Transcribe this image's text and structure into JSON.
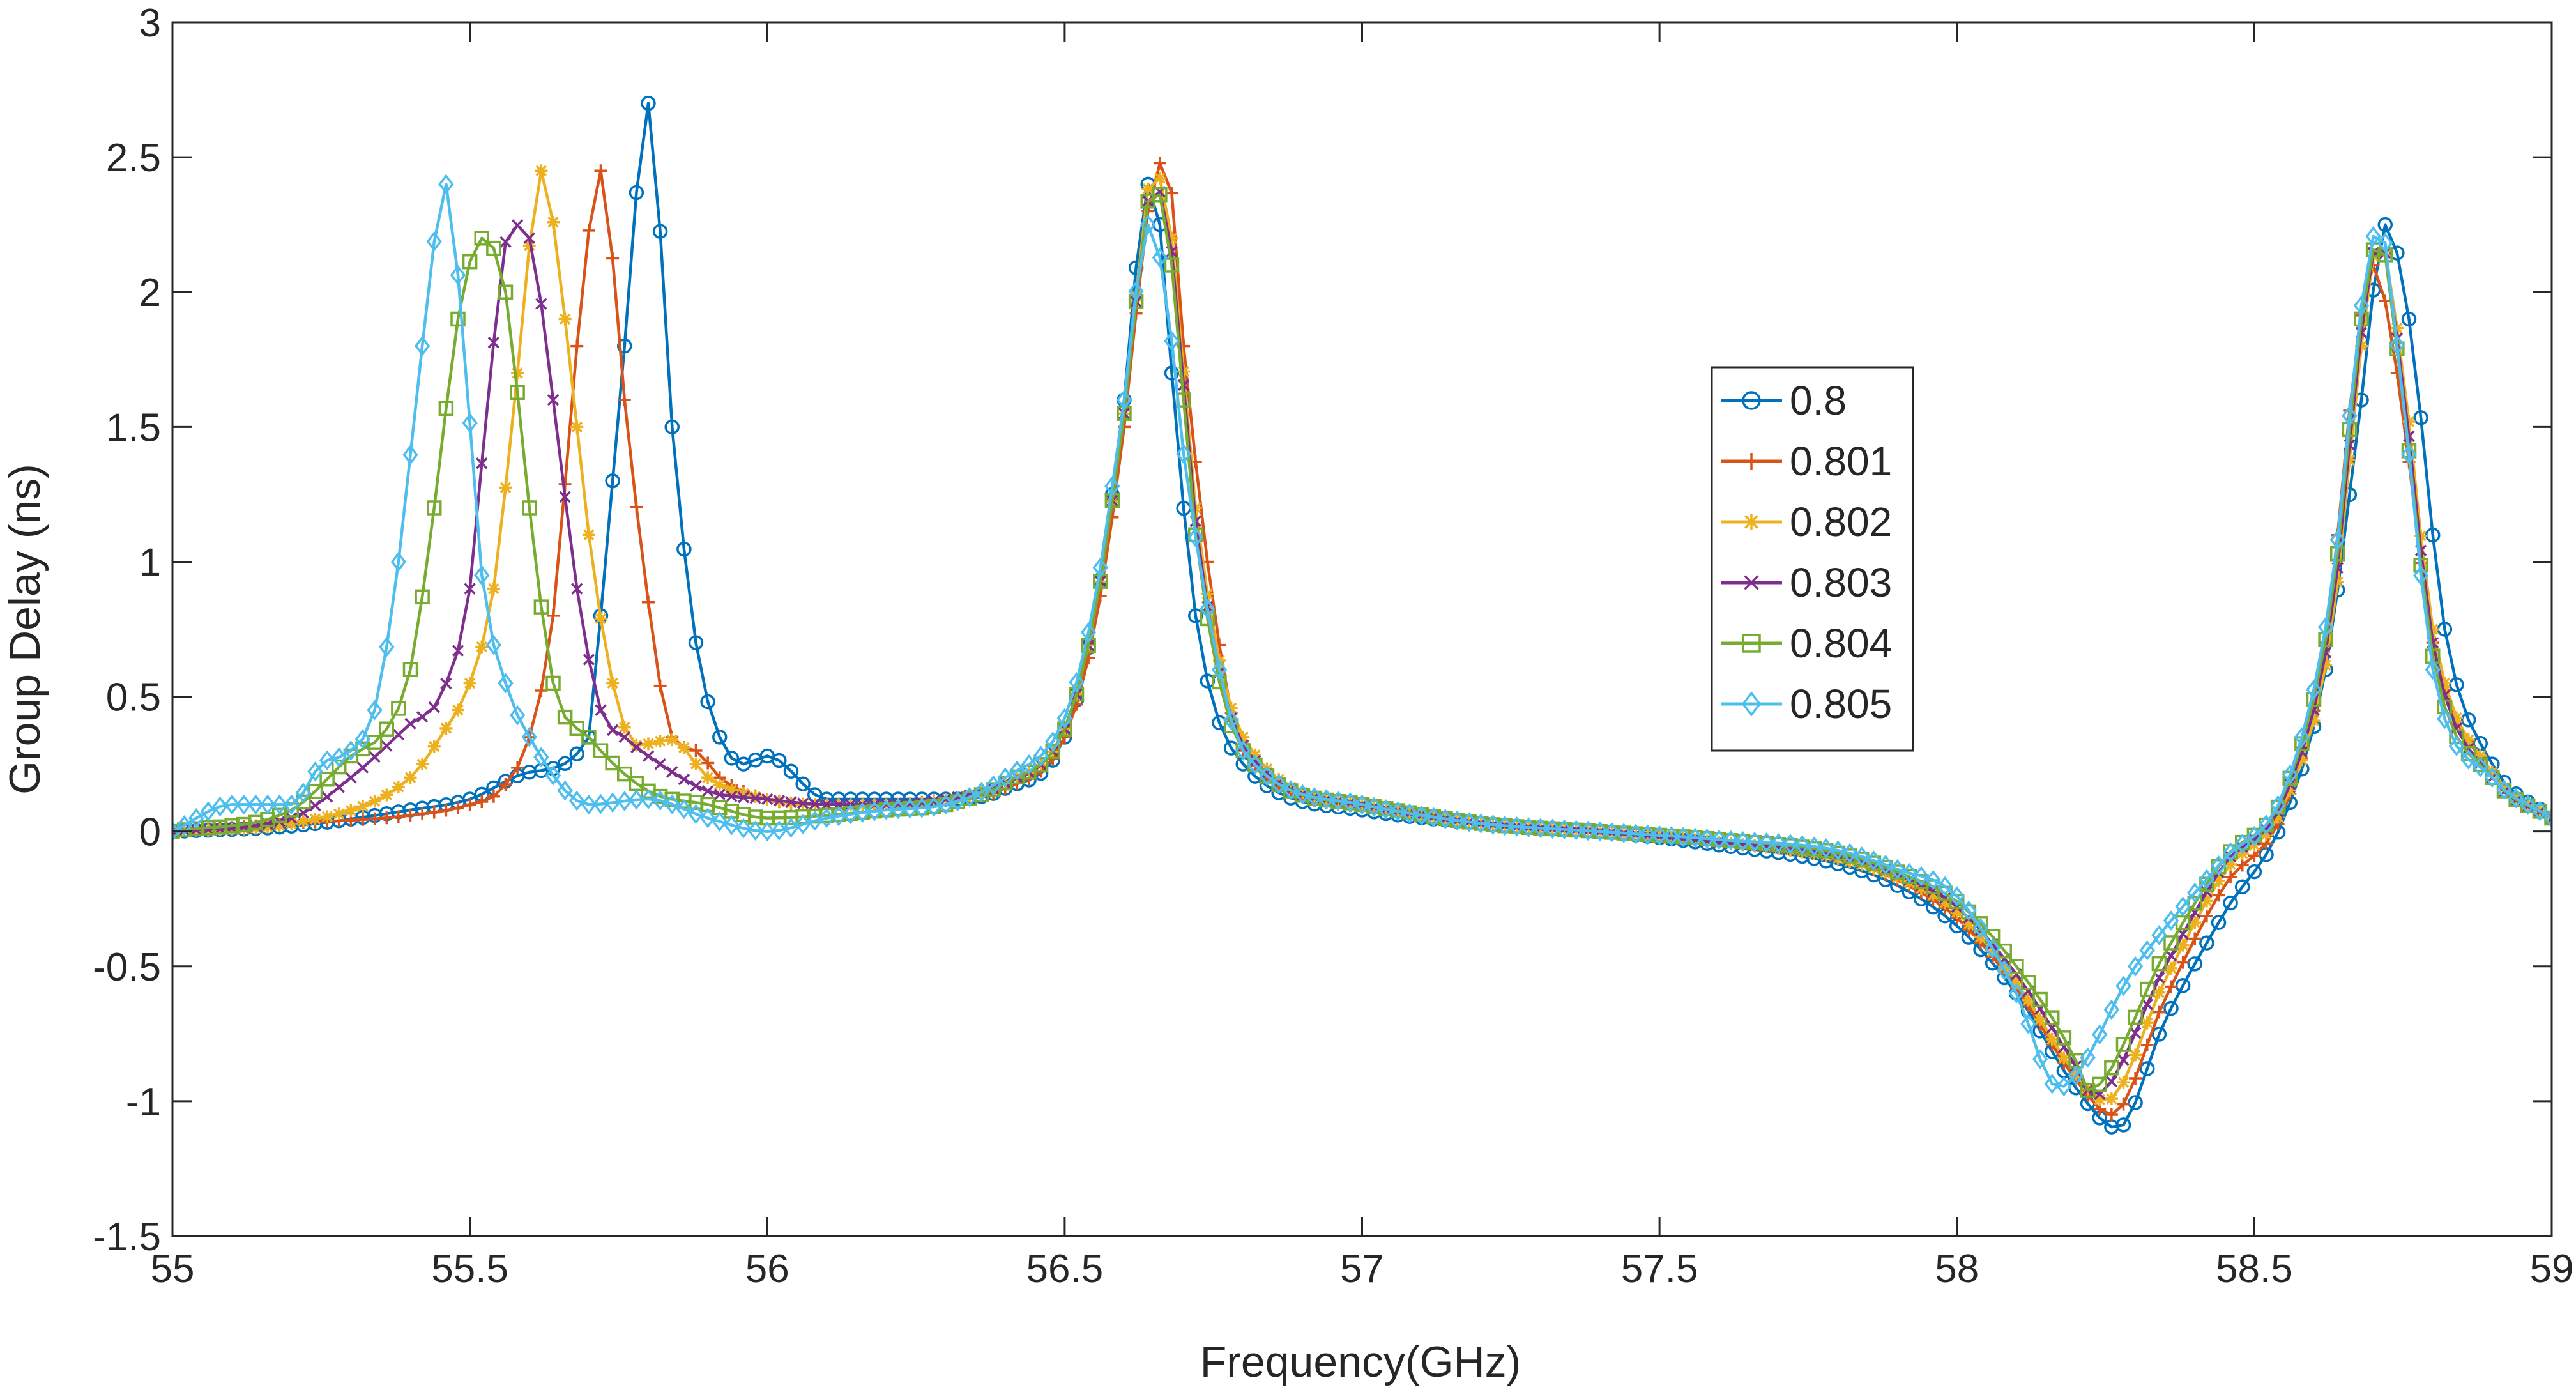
{
  "chart_data": {
    "type": "line",
    "title": "",
    "xlabel": "Frequency(GHz)",
    "ylabel": "Group Delay (ns)",
    "xlim": [
      55,
      59
    ],
    "ylim": [
      -1.5,
      3
    ],
    "xticks": [
      55,
      55.5,
      56,
      56.5,
      57,
      57.5,
      58,
      58.5,
      59
    ],
    "yticks": [
      -1.5,
      -1,
      -0.5,
      0,
      0.5,
      1,
      1.5,
      2,
      2.5,
      3
    ],
    "xtick_labels": [
      "55",
      "55.5",
      "56",
      "56.5",
      "57",
      "57.5",
      "58",
      "58.5",
      "59"
    ],
    "ytick_labels": [
      "-1.5",
      "-1",
      "-0.5",
      "0",
      "0.5",
      "1",
      "1.5",
      "2",
      "2.5",
      "3"
    ],
    "grid": false,
    "legend_position": "center-right",
    "series": [
      {
        "name": "0.8",
        "color": "#0072BD",
        "marker": "circle",
        "x": [
          55.0,
          55.2,
          55.4,
          55.5,
          55.6,
          55.7,
          55.72,
          55.76,
          55.8,
          55.84,
          55.88,
          55.92,
          55.96,
          56.0,
          56.1,
          56.2,
          56.3,
          56.4,
          56.5,
          56.55,
          56.6,
          56.64,
          56.66,
          56.68,
          56.72,
          56.8,
          57.0,
          57.2,
          57.4,
          57.6,
          57.8,
          57.9,
          58.0,
          58.1,
          58.2,
          58.27,
          58.35,
          58.45,
          58.55,
          58.62,
          58.68,
          58.72,
          58.76,
          58.82,
          58.9,
          59.0
        ],
        "y": [
          0.0,
          0.02,
          0.08,
          0.12,
          0.22,
          0.35,
          0.8,
          1.8,
          2.7,
          1.5,
          0.7,
          0.35,
          0.25,
          0.28,
          0.12,
          0.12,
          0.12,
          0.16,
          0.35,
          0.8,
          1.6,
          2.4,
          2.25,
          1.7,
          0.8,
          0.25,
          0.08,
          0.03,
          0.0,
          -0.05,
          -0.12,
          -0.2,
          -0.35,
          -0.6,
          -0.95,
          -1.1,
          -0.7,
          -0.3,
          0.05,
          0.6,
          1.6,
          2.25,
          1.9,
          0.75,
          0.25,
          0.05
        ]
      },
      {
        "name": "0.801",
        "color": "#D95319",
        "marker": "plus",
        "x": [
          55.0,
          55.2,
          55.4,
          55.5,
          55.55,
          55.6,
          55.64,
          55.68,
          55.72,
          55.76,
          55.8,
          55.84,
          55.88,
          55.92,
          56.0,
          56.1,
          56.2,
          56.3,
          56.4,
          56.5,
          56.55,
          56.6,
          56.64,
          56.67,
          56.7,
          56.74,
          56.8,
          57.0,
          57.2,
          57.4,
          57.6,
          57.8,
          57.9,
          58.0,
          58.1,
          58.2,
          58.26,
          58.35,
          58.45,
          58.55,
          58.62,
          58.67,
          58.7,
          58.74,
          58.8,
          58.9,
          59.0
        ],
        "y": [
          0.0,
          0.03,
          0.06,
          0.1,
          0.15,
          0.35,
          0.8,
          1.8,
          2.45,
          1.6,
          0.85,
          0.35,
          0.3,
          0.2,
          0.12,
          0.1,
          0.1,
          0.12,
          0.16,
          0.35,
          0.75,
          1.5,
          2.3,
          2.5,
          1.8,
          1.0,
          0.3,
          0.09,
          0.03,
          0.0,
          -0.04,
          -0.1,
          -0.18,
          -0.32,
          -0.58,
          -0.92,
          -1.05,
          -0.62,
          -0.2,
          0.08,
          0.7,
          1.75,
          2.1,
          1.7,
          0.7,
          0.22,
          0.05
        ]
      },
      {
        "name": "0.802",
        "color": "#EDB120",
        "marker": "asterisk",
        "x": [
          55.0,
          55.2,
          55.4,
          55.45,
          55.5,
          55.54,
          55.58,
          55.62,
          55.66,
          55.7,
          55.74,
          55.78,
          55.84,
          55.9,
          56.0,
          56.1,
          56.2,
          56.3,
          56.4,
          56.5,
          56.55,
          56.6,
          56.65,
          56.68,
          56.72,
          56.8,
          57.0,
          57.2,
          57.4,
          57.6,
          57.8,
          57.9,
          58.0,
          58.1,
          58.2,
          58.25,
          58.35,
          58.45,
          58.55,
          58.63,
          58.68,
          58.71,
          58.75,
          58.8,
          58.9,
          59.0
        ],
        "y": [
          0.0,
          0.03,
          0.2,
          0.35,
          0.55,
          0.9,
          1.7,
          2.45,
          1.9,
          1.1,
          0.55,
          0.32,
          0.34,
          0.2,
          0.12,
          0.1,
          0.1,
          0.12,
          0.18,
          0.38,
          0.8,
          1.55,
          2.45,
          2.2,
          1.2,
          0.35,
          0.1,
          0.03,
          0.0,
          -0.04,
          -0.1,
          -0.17,
          -0.3,
          -0.56,
          -0.9,
          -1.0,
          -0.55,
          -0.15,
          0.1,
          0.75,
          1.8,
          2.2,
          1.7,
          0.75,
          0.22,
          0.05
        ]
      },
      {
        "name": "0.803",
        "color": "#7E2F8E",
        "marker": "x",
        "x": [
          55.0,
          55.2,
          55.3,
          55.4,
          55.45,
          55.5,
          55.53,
          55.57,
          55.6,
          55.64,
          55.68,
          55.72,
          55.76,
          55.82,
          55.9,
          56.0,
          56.1,
          56.2,
          56.3,
          56.4,
          56.5,
          56.55,
          56.6,
          56.65,
          56.68,
          56.72,
          56.8,
          57.0,
          57.2,
          57.4,
          57.6,
          57.8,
          57.9,
          58.0,
          58.1,
          58.2,
          58.23,
          58.35,
          58.45,
          58.55,
          58.63,
          58.68,
          58.71,
          58.75,
          58.8,
          58.9,
          59.0
        ],
        "y": [
          0.0,
          0.05,
          0.2,
          0.4,
          0.5,
          0.9,
          1.6,
          2.25,
          2.2,
          1.6,
          0.9,
          0.45,
          0.35,
          0.25,
          0.15,
          0.12,
          0.1,
          0.1,
          0.12,
          0.18,
          0.38,
          0.8,
          1.55,
          2.4,
          2.15,
          1.15,
          0.32,
          0.1,
          0.03,
          0.0,
          -0.04,
          -0.09,
          -0.16,
          -0.28,
          -0.53,
          -0.87,
          -0.98,
          -0.5,
          -0.12,
          0.12,
          0.8,
          1.85,
          2.2,
          1.65,
          0.7,
          0.2,
          0.05
        ]
      },
      {
        "name": "0.804",
        "color": "#77AC30",
        "marker": "square",
        "x": [
          55.0,
          55.2,
          55.3,
          55.36,
          55.4,
          55.44,
          55.48,
          55.52,
          55.56,
          55.6,
          55.64,
          55.7,
          55.8,
          55.9,
          56.0,
          56.1,
          56.2,
          56.3,
          56.4,
          56.5,
          56.55,
          56.6,
          56.65,
          56.68,
          56.72,
          56.8,
          57.0,
          57.2,
          57.4,
          57.6,
          57.8,
          57.9,
          58.0,
          58.1,
          58.2,
          58.22,
          58.35,
          58.45,
          58.55,
          58.63,
          58.68,
          58.71,
          58.75,
          58.8,
          58.9,
          59.0
        ],
        "y": [
          0.0,
          0.08,
          0.28,
          0.38,
          0.6,
          1.2,
          1.9,
          2.2,
          2.0,
          1.2,
          0.55,
          0.35,
          0.15,
          0.1,
          0.05,
          0.06,
          0.08,
          0.1,
          0.18,
          0.38,
          0.8,
          1.55,
          2.4,
          2.1,
          1.1,
          0.3,
          0.1,
          0.03,
          0.0,
          -0.03,
          -0.08,
          -0.15,
          -0.26,
          -0.5,
          -0.85,
          -0.96,
          -0.45,
          -0.1,
          0.14,
          0.85,
          1.9,
          2.2,
          1.6,
          0.65,
          0.2,
          0.05
        ]
      },
      {
        "name": "0.805",
        "color": "#4DBEEE",
        "marker": "diamond",
        "x": [
          55.0,
          55.1,
          55.2,
          55.25,
          55.3,
          55.34,
          55.38,
          55.42,
          55.46,
          55.49,
          55.52,
          55.56,
          55.6,
          55.7,
          55.8,
          55.9,
          56.0,
          56.1,
          56.2,
          56.3,
          56.4,
          56.5,
          56.55,
          56.6,
          56.64,
          56.67,
          56.7,
          56.76,
          56.8,
          57.0,
          57.2,
          57.4,
          57.6,
          57.8,
          57.9,
          58.0,
          58.1,
          58.17,
          58.3,
          58.45,
          58.55,
          58.63,
          58.68,
          58.71,
          58.75,
          58.8,
          58.9,
          59.0
        ],
        "y": [
          0.0,
          0.1,
          0.1,
          0.25,
          0.3,
          0.45,
          1.0,
          1.8,
          2.4,
          1.8,
          0.95,
          0.55,
          0.35,
          0.1,
          0.12,
          0.05,
          0.0,
          0.05,
          0.08,
          0.1,
          0.2,
          0.42,
          0.85,
          1.6,
          2.25,
          2.0,
          1.4,
          0.6,
          0.3,
          0.1,
          0.03,
          0.0,
          -0.03,
          -0.07,
          -0.14,
          -0.24,
          -0.6,
          -0.95,
          -0.5,
          -0.1,
          0.15,
          0.9,
          1.95,
          2.25,
          1.6,
          0.6,
          0.2,
          0.05
        ]
      }
    ]
  }
}
